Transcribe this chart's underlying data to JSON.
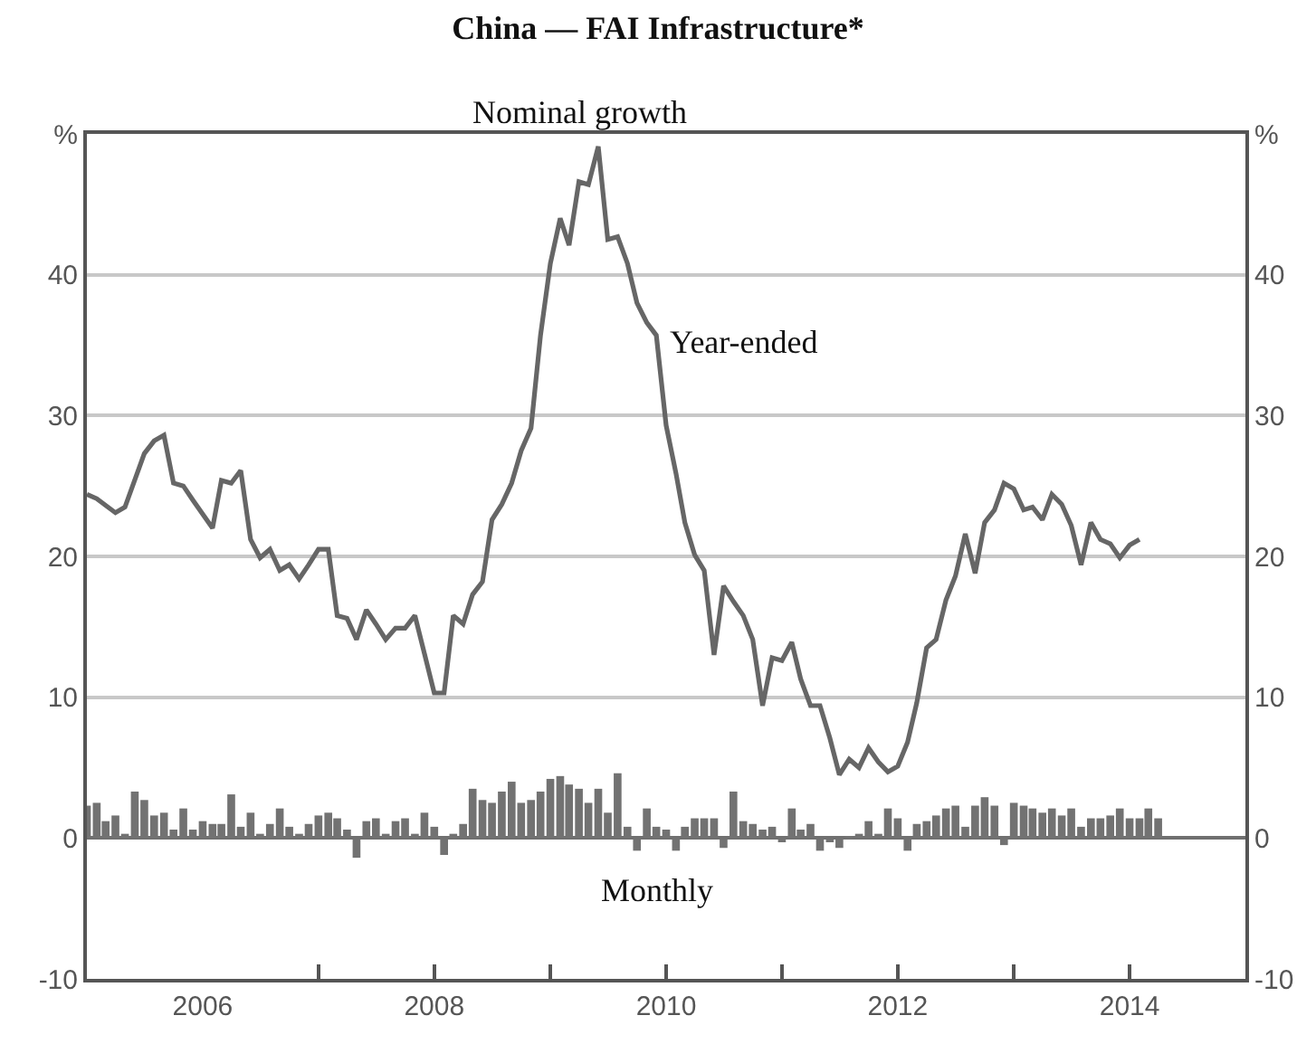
{
  "chart_data": {
    "type": "line",
    "title": "China — FAI Infrastructure*",
    "subtitle": "Nominal growth",
    "annotations": [
      "Year-ended",
      "Monthly"
    ],
    "xlim": [
      "2005-01-01",
      "2015-01-01"
    ],
    "xticks": [
      {
        "value": "2006",
        "label": "2006"
      },
      {
        "value": "2007",
        "label": null
      },
      {
        "value": "2008",
        "label": "2008"
      },
      {
        "value": "2009",
        "label": null
      },
      {
        "value": "2010",
        "label": "2010"
      },
      {
        "value": "2011",
        "label": null
      },
      {
        "value": "2012",
        "label": "2012"
      },
      {
        "value": "2013",
        "label": null
      },
      {
        "value": "2014",
        "label": "2014"
      }
    ],
    "ylim": [
      -10,
      50
    ],
    "yticks": [
      -10,
      0,
      10,
      20,
      30,
      40,
      {
        "value": 50,
        "label": "%"
      }
    ],
    "y2lim": [
      -10,
      50
    ],
    "y2ticks": [
      -10,
      0,
      10,
      20,
      30,
      40,
      {
        "value": 50,
        "label": "%"
      }
    ],
    "grid": "y",
    "series": [
      {
        "type": "bar",
        "color": "#727272",
        "x": [
          "2005-01",
          "2005-02",
          "2005-03",
          "2005-04",
          "2005-05",
          "2005-06",
          "2005-07",
          "2005-08",
          "2005-09",
          "2005-10",
          "2005-11",
          "2005-12",
          "2006-01",
          "2006-02",
          "2006-03",
          "2006-04",
          "2006-05",
          "2006-06",
          "2006-07",
          "2006-08",
          "2006-09",
          "2006-10",
          "2006-11",
          "2006-12",
          "2007-01",
          "2007-02",
          "2007-03",
          "2007-04",
          "2007-05",
          "2007-06",
          "2007-07",
          "2007-08",
          "2007-09",
          "2007-10",
          "2007-11",
          "2007-12",
          "2008-01",
          "2008-02",
          "2008-03",
          "2008-04",
          "2008-05",
          "2008-06",
          "2008-07",
          "2008-08",
          "2008-09",
          "2008-10",
          "2008-11",
          "2008-12",
          "2009-01",
          "2009-02",
          "2009-03",
          "2009-04",
          "2009-05",
          "2009-06",
          "2009-07",
          "2009-08",
          "2009-09",
          "2009-10",
          "2009-11",
          "2009-12",
          "2010-01",
          "2010-02",
          "2010-03",
          "2010-04",
          "2010-05",
          "2010-06",
          "2010-07",
          "2010-08",
          "2010-09",
          "2010-10",
          "2010-11",
          "2010-12",
          "2011-01",
          "2011-02",
          "2011-03",
          "2011-04",
          "2011-05",
          "2011-06",
          "2011-07",
          "2011-08",
          "2011-09",
          "2011-10",
          "2011-11",
          "2011-12",
          "2012-01",
          "2012-02",
          "2012-03",
          "2012-04",
          "2012-05",
          "2012-06",
          "2012-07",
          "2012-08",
          "2012-09",
          "2012-10",
          "2012-11",
          "2012-12",
          "2013-01",
          "2013-02",
          "2013-03",
          "2013-04",
          "2013-05",
          "2013-06",
          "2013-07",
          "2013-08",
          "2013-09",
          "2013-10",
          "2013-11",
          "2013-12",
          "2014-01",
          "2014-02",
          "2014-03",
          "2014-04"
        ],
        "values": [
          2.3,
          2.5,
          1.2,
          1.6,
          0.3,
          3.3,
          2.7,
          1.6,
          1.8,
          0.6,
          2.1,
          0.6,
          1.2,
          1.0,
          1.0,
          3.1,
          0.8,
          1.8,
          0.3,
          1.0,
          2.1,
          0.8,
          0.3,
          1.0,
          1.6,
          1.8,
          1.4,
          0.6,
          -1.4,
          1.2,
          1.4,
          0.3,
          1.2,
          1.4,
          0.3,
          1.8,
          0.8,
          -1.2,
          0.3,
          1.0,
          3.5,
          2.7,
          2.5,
          3.3,
          4.0,
          2.5,
          2.7,
          3.3,
          4.2,
          4.4,
          3.8,
          3.5,
          2.5,
          3.5,
          1.8,
          4.6,
          0.8,
          -0.9,
          2.1,
          0.8,
          0.6,
          -0.9,
          0.8,
          1.4,
          1.4,
          1.4,
          -0.7,
          3.3,
          1.2,
          1.0,
          0.6,
          0.8,
          -0.3,
          2.1,
          0.6,
          1.0,
          -0.9,
          -0.3,
          -0.7,
          0.1,
          0.3,
          1.2,
          0.3,
          2.1,
          1.4,
          -0.9,
          1.0,
          1.2,
          1.6,
          2.1,
          2.3,
          0.8,
          2.3,
          2.9,
          2.3,
          -0.5,
          2.5,
          2.3,
          2.1,
          1.8,
          2.1,
          1.6,
          2.1,
          0.8,
          1.4,
          1.4,
          1.6,
          2.1,
          1.4,
          1.4,
          2.1,
          1.4
        ]
      },
      {
        "color": "#666666",
        "x": [
          "2005-01",
          "2005-02",
          "2005-04",
          "2005-05",
          "2005-07",
          "2005-08",
          "2005-09",
          "2005-10",
          "2005-11",
          "2005-12",
          "2006-02",
          "2006-03",
          "2006-04",
          "2006-05",
          "2006-06",
          "2006-07",
          "2006-08",
          "2006-09",
          "2006-10",
          "2006-11",
          "2006-12",
          "2007-01",
          "2007-02",
          "2007-03",
          "2007-04",
          "2007-05",
          "2007-06",
          "2007-07",
          "2007-08",
          "2007-09",
          "2007-10",
          "2007-11",
          "2007-12",
          "2008-01",
          "2008-02",
          "2008-03",
          "2008-04",
          "2008-05",
          "2008-06",
          "2008-07",
          "2008-08",
          "2008-09",
          "2008-10",
          "2008-11",
          "2008-12",
          "2009-01",
          "2009-02",
          "2009-03",
          "2009-04",
          "2009-05",
          "2009-06",
          "2009-07",
          "2009-08",
          "2009-09",
          "2009-10",
          "2009-11",
          "2009-12",
          "2010-01",
          "2010-02",
          "2010-03",
          "2010-04",
          "2010-05",
          "2010-06",
          "2010-07",
          "2010-08",
          "2010-09",
          "2010-10",
          "2010-11",
          "2010-12",
          "2011-01",
          "2011-02",
          "2011-03",
          "2011-04",
          "2011-05",
          "2011-06",
          "2011-07",
          "2011-08",
          "2011-09",
          "2011-10",
          "2011-11",
          "2011-12",
          "2012-01",
          "2012-02",
          "2012-03",
          "2012-04",
          "2012-05",
          "2012-06",
          "2012-07",
          "2012-08",
          "2012-09",
          "2012-10",
          "2012-11",
          "2012-12",
          "2013-01",
          "2013-02",
          "2013-03",
          "2013-04",
          "2013-05",
          "2013-06",
          "2013-07",
          "2013-08",
          "2013-09",
          "2013-10",
          "2013-11",
          "2013-12",
          "2014-01",
          "2014-02"
        ],
        "values": [
          24.4,
          24.1,
          23.1,
          23.5,
          27.3,
          28.2,
          28.6,
          25.2,
          25.0,
          24.0,
          22.0,
          25.4,
          25.2,
          26.1,
          21.2,
          19.9,
          20.5,
          19.0,
          19.4,
          18.4,
          19.4,
          20.5,
          20.5,
          15.8,
          15.6,
          14.1,
          16.2,
          15.2,
          14.1,
          14.9,
          14.9,
          15.8,
          13.1,
          10.3,
          10.3,
          15.8,
          15.2,
          17.3,
          18.2,
          22.6,
          23.7,
          25.2,
          27.5,
          29.1,
          35.7,
          40.8,
          44.0,
          42.1,
          46.6,
          46.4,
          49.1,
          42.5,
          42.7,
          40.8,
          38.0,
          36.6,
          35.7,
          29.3,
          25.9,
          22.4,
          20.1,
          19.0,
          13.0,
          17.9,
          16.8,
          15.8,
          14.1,
          9.4,
          12.8,
          12.6,
          13.9,
          11.3,
          9.4,
          9.4,
          7.1,
          4.5,
          5.6,
          5.0,
          6.4,
          5.4,
          4.7,
          5.1,
          6.8,
          9.6,
          13.5,
          14.1,
          16.9,
          18.6,
          21.6,
          18.8,
          22.4,
          23.3,
          25.2,
          24.8,
          23.3,
          23.5,
          22.6,
          24.4,
          23.7,
          22.2,
          19.4,
          22.4,
          21.2,
          20.9,
          19.9,
          20.8,
          21.2
        ]
      }
    ]
  }
}
